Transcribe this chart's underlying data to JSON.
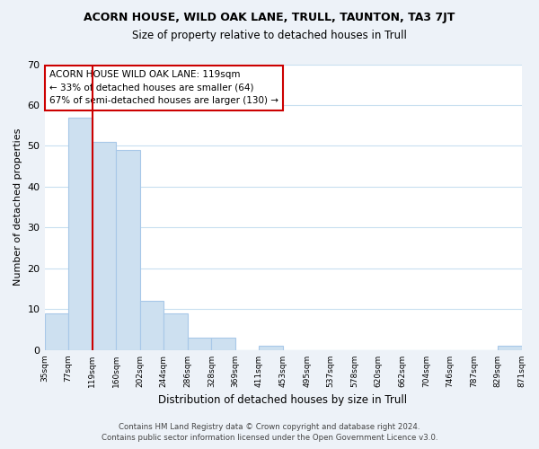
{
  "title": "ACORN HOUSE, WILD OAK LANE, TRULL, TAUNTON, TA3 7JT",
  "subtitle": "Size of property relative to detached houses in Trull",
  "xlabel": "Distribution of detached houses by size in Trull",
  "ylabel": "Number of detached properties",
  "bin_labels": [
    "35sqm",
    "77sqm",
    "119sqm",
    "160sqm",
    "202sqm",
    "244sqm",
    "286sqm",
    "328sqm",
    "369sqm",
    "411sqm",
    "453sqm",
    "495sqm",
    "537sqm",
    "578sqm",
    "620sqm",
    "662sqm",
    "704sqm",
    "746sqm",
    "787sqm",
    "829sqm",
    "871sqm"
  ],
  "counts": [
    9,
    57,
    51,
    49,
    12,
    9,
    3,
    3,
    0,
    1,
    0,
    0,
    0,
    0,
    0,
    0,
    0,
    0,
    0,
    1
  ],
  "bar_color": "#cde0f0",
  "bar_edge_color": "#a8c8e8",
  "marker_color": "#cc0000",
  "marker_bin_idx": 2,
  "ylim": [
    0,
    70
  ],
  "yticks": [
    0,
    10,
    20,
    30,
    40,
    50,
    60,
    70
  ],
  "annotation_title": "ACORN HOUSE WILD OAK LANE: 119sqm",
  "annotation_line1": "← 33% of detached houses are smaller (64)",
  "annotation_line2": "67% of semi-detached houses are larger (130) →",
  "footer_line1": "Contains HM Land Registry data © Crown copyright and database right 2024.",
  "footer_line2": "Contains public sector information licensed under the Open Government Licence v3.0.",
  "background_color": "#edf2f8",
  "plot_background_color": "#ffffff",
  "grid_color": "#c8dff0"
}
